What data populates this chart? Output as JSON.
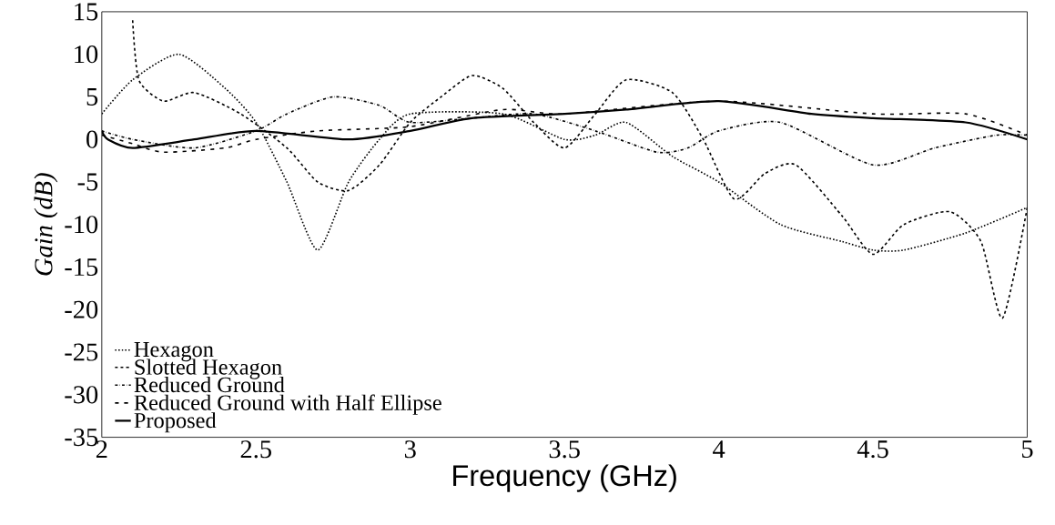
{
  "chart_data": {
    "type": "line",
    "xlabel": "Frequency (GHz)",
    "ylabel": "Gain (dB)",
    "xlim": [
      2,
      5
    ],
    "ylim": [
      -35,
      15
    ],
    "xticks": [
      2,
      2.5,
      3,
      3.5,
      4,
      4.5,
      5
    ],
    "yticks": [
      15,
      10,
      5,
      0,
      -5,
      -10,
      -15,
      -20,
      -25,
      -30,
      -35
    ],
    "legend": "bottom left",
    "series": [
      {
        "name": "Hexagon",
        "color": "#000000",
        "line_style": "dotted",
        "x": [
          2.0,
          2.1,
          2.25,
          2.4,
          2.5,
          2.6,
          2.7,
          2.8,
          2.9,
          3.0,
          3.3,
          3.5,
          3.6,
          3.7,
          3.85,
          4.0,
          4.2,
          4.4,
          4.5,
          4.6,
          4.8,
          5.0
        ],
        "values": [
          3,
          7,
          10,
          6,
          2,
          -5,
          -13,
          -5,
          0,
          3,
          3,
          0,
          0.5,
          2,
          -2,
          -5,
          -10,
          -12,
          -13,
          -13,
          -11,
          -8
        ]
      },
      {
        "name": "Slotted Hexagon",
        "color": "#000000",
        "line_style": "dashed",
        "x": [
          2.1,
          2.12,
          2.2,
          2.3,
          2.45,
          2.6,
          2.7,
          2.8,
          2.9,
          3.0,
          3.1,
          3.2,
          3.3,
          3.4,
          3.5,
          3.6,
          3.7,
          3.85,
          3.95,
          4.05,
          4.15,
          4.25,
          4.4,
          4.5,
          4.6,
          4.75,
          4.85,
          4.92,
          5.0
        ],
        "values": [
          14,
          7,
          4.5,
          5.5,
          3,
          -1,
          -5,
          -6,
          -3,
          2,
          5,
          7.5,
          6,
          2,
          -1,
          3,
          7,
          5.5,
          0,
          -7,
          -4,
          -3,
          -9,
          -13.5,
          -10,
          -8.5,
          -12,
          -21,
          -8
        ]
      },
      {
        "name": "Reduced Ground",
        "color": "#000000",
        "line_style": "dashdotted",
        "x": [
          2.0,
          2.1,
          2.3,
          2.5,
          2.6,
          2.75,
          2.9,
          3.0,
          3.2,
          3.4,
          3.6,
          3.8,
          3.9,
          4.0,
          4.2,
          4.5,
          4.7,
          4.9,
          5.0
        ],
        "values": [
          1,
          0,
          -1,
          1,
          3,
          5,
          4,
          2,
          2.5,
          3,
          1,
          -1.5,
          -1,
          1,
          2,
          -3,
          -1,
          0.5,
          0.5
        ]
      },
      {
        "name": "Reduced Ground with Half Ellipse",
        "color": "#000000",
        "line_style": "loosely dashed",
        "x": [
          2.0,
          2.1,
          2.2,
          2.4,
          2.5,
          2.7,
          3.0,
          3.3,
          3.5,
          4.0,
          4.5,
          4.8,
          5.0
        ],
        "values": [
          0.5,
          -0.5,
          -1.5,
          -1,
          0,
          1,
          1.5,
          3.5,
          3,
          4.5,
          3,
          3,
          0.5
        ]
      },
      {
        "name": "Proposed",
        "color": "#000000",
        "line_style": "solid",
        "x": [
          2.0,
          2.02,
          2.1,
          2.3,
          2.5,
          2.8,
          3.0,
          3.2,
          3.5,
          3.7,
          4.0,
          4.3,
          4.5,
          4.8,
          5.0
        ],
        "values": [
          1,
          0,
          -1,
          0,
          1,
          0,
          1,
          2.5,
          3,
          3.5,
          4.5,
          3,
          2.5,
          2,
          0
        ]
      }
    ]
  }
}
